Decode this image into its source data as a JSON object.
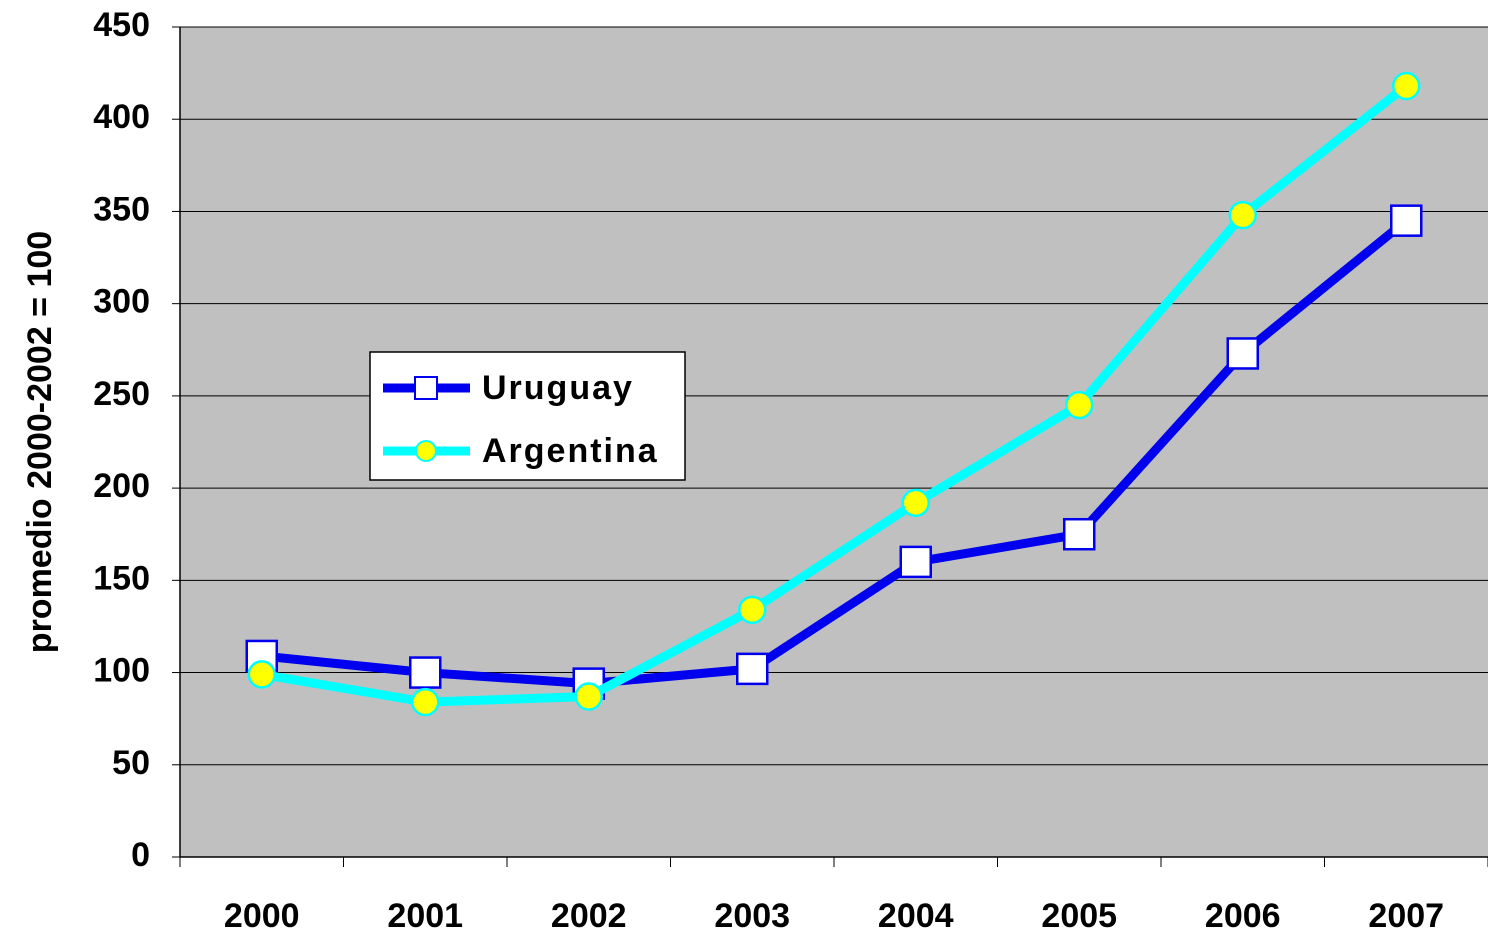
{
  "chart_data": {
    "type": "line",
    "y_label": "promedio 2000-2002 = 100",
    "categories": [
      "2000",
      "2001",
      "2002",
      "2003",
      "2004",
      "2005",
      "2006",
      "2007"
    ],
    "series": [
      {
        "name": "Uruguay",
        "color": "#0000ee",
        "marker": "square",
        "marker_color": "#ffffff",
        "values": [
          109,
          100,
          94,
          102,
          160,
          175,
          273,
          345
        ]
      },
      {
        "name": "Argentina",
        "color": "#00ffff",
        "marker": "circle",
        "marker_color": "#ffff00",
        "values": [
          99,
          84,
          87,
          134,
          192,
          245,
          348,
          418
        ]
      }
    ],
    "ylim": [
      0,
      450
    ],
    "yticks": [
      0,
      50,
      100,
      150,
      200,
      250,
      300,
      350,
      400,
      450
    ],
    "grid": true,
    "background": "#c0c0c0"
  }
}
